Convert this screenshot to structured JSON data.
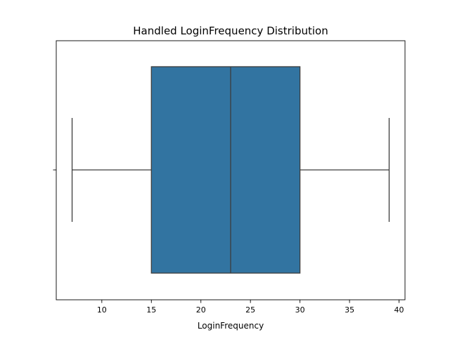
{
  "chart_data": {
    "type": "box",
    "title": "Handled LoginFrequency Distribution",
    "xlabel": "LoginFrequency",
    "ylabel": "",
    "xlim": [
      5.4,
      40.6
    ],
    "xticks": [
      10,
      15,
      20,
      25,
      30,
      35,
      40
    ],
    "xtick_labels": [
      "10",
      "15",
      "20",
      "25",
      "30",
      "35",
      "40"
    ],
    "box": {
      "whisker_low": 7,
      "q1": 15,
      "median": 23,
      "q3": 30,
      "whisker_high": 39
    },
    "box_color": "#3274a1",
    "line_color": "#3d3d3d",
    "grid": false,
    "legend": "none"
  }
}
